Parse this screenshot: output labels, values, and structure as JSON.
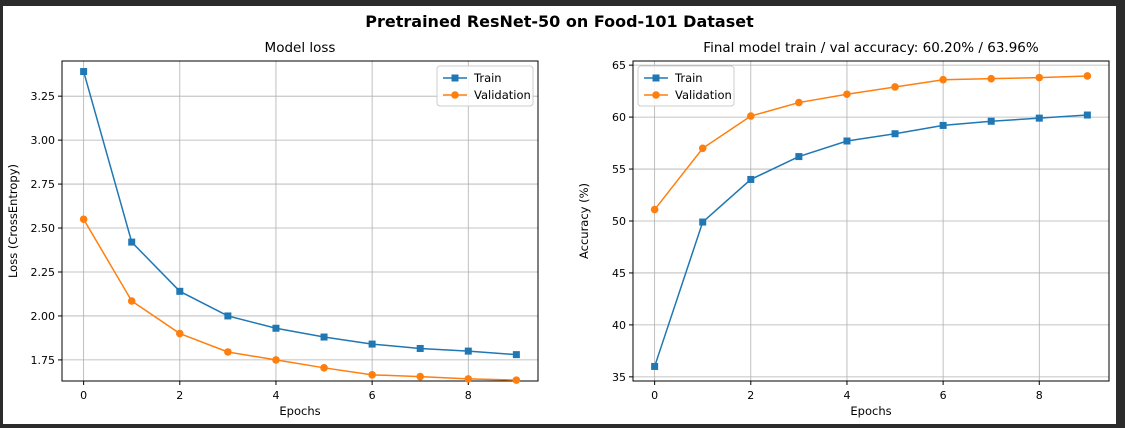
{
  "figure": {
    "suptitle": "Pretrained ResNet-50 on Food-101 Dataset"
  },
  "colors": {
    "train": "#1f77b4",
    "validation": "#ff7f0e",
    "background": "#2b2b2b"
  },
  "chart_data": [
    {
      "type": "line",
      "title": "Model loss",
      "xlabel": "Epochs",
      "ylabel": "Loss (CrossEntropy)",
      "x": [
        0,
        1,
        2,
        3,
        4,
        5,
        6,
        7,
        8,
        9
      ],
      "xlim": [
        -0.45,
        9.45
      ],
      "ylim": [
        1.63,
        3.45
      ],
      "xticks": [
        0,
        2,
        4,
        6,
        8
      ],
      "yticks": [
        1.75,
        2.0,
        2.25,
        2.5,
        2.75,
        3.0,
        3.25
      ],
      "ytick_labels": [
        "1.75",
        "2.00",
        "2.25",
        "2.50",
        "2.75",
        "3.00",
        "3.25"
      ],
      "grid": true,
      "legend_position": "top-right",
      "series": [
        {
          "name": "Train",
          "marker": "square",
          "color": "#1f77b4",
          "values": [
            3.39,
            2.42,
            2.14,
            2.0,
            1.93,
            1.88,
            1.84,
            1.815,
            1.8,
            1.78
          ]
        },
        {
          "name": "Validation",
          "marker": "circle",
          "color": "#ff7f0e",
          "values": [
            2.55,
            2.085,
            1.9,
            1.795,
            1.75,
            1.705,
            1.665,
            1.655,
            1.642,
            1.635
          ]
        }
      ]
    },
    {
      "type": "line",
      "title": "Final model train / val accuracy: 60.20% / 63.96%",
      "xlabel": "Epochs",
      "ylabel": "Accuracy (%)",
      "x": [
        0,
        1,
        2,
        3,
        4,
        5,
        6,
        7,
        8,
        9
      ],
      "xlim": [
        -0.45,
        9.45
      ],
      "ylim": [
        34.6,
        65.4
      ],
      "xticks": [
        0,
        2,
        4,
        6,
        8
      ],
      "yticks": [
        35,
        40,
        45,
        50,
        55,
        60,
        65
      ],
      "ytick_labels": [
        "35",
        "40",
        "45",
        "50",
        "55",
        "60",
        "65"
      ],
      "grid": true,
      "legend_position": "top-left",
      "series": [
        {
          "name": "Train",
          "marker": "square",
          "color": "#1f77b4",
          "values": [
            36.0,
            49.9,
            54.0,
            56.2,
            57.7,
            58.4,
            59.2,
            59.6,
            59.9,
            60.2
          ]
        },
        {
          "name": "Validation",
          "marker": "circle",
          "color": "#ff7f0e",
          "values": [
            51.1,
            57.0,
            60.1,
            61.4,
            62.2,
            62.9,
            63.6,
            63.7,
            63.8,
            63.96
          ]
        }
      ]
    }
  ]
}
